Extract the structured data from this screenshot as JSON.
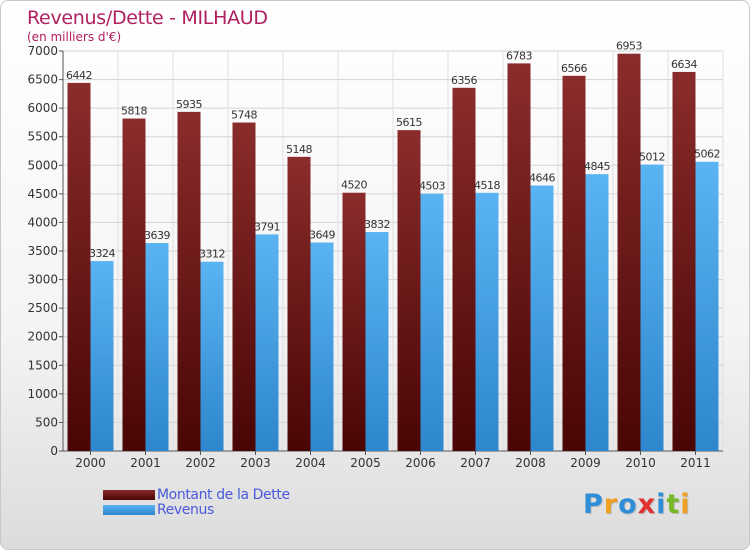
{
  "title": "Revenus/Dette - MILHAUD",
  "subtitle": "(en milliers d'€)",
  "colors": {
    "title": "#b02060",
    "debt_bar": "#6b1a1a",
    "revenue_bar": "#4aa3e8",
    "legend_text": "#4a5adb"
  },
  "legend": {
    "debt_label": "Montant de la Dette",
    "revenue_label": "Revenus"
  },
  "logo": {
    "text": "Proxiti",
    "letters": [
      {
        "ch": "P",
        "color": "#2e8fd8"
      },
      {
        "ch": "r",
        "color": "#f0a020"
      },
      {
        "ch": "o",
        "color": "#2e8fd8"
      },
      {
        "ch": "x",
        "color": "#e03030"
      },
      {
        "ch": "i",
        "color": "#2e8fd8"
      },
      {
        "ch": "t",
        "color": "#78b828"
      },
      {
        "ch": "i",
        "color": "#f0a020"
      }
    ]
  },
  "chart_data": {
    "type": "bar",
    "categories": [
      "2000",
      "2001",
      "2002",
      "2003",
      "2004",
      "2005",
      "2006",
      "2007",
      "2008",
      "2009",
      "2010",
      "2011"
    ],
    "series": [
      {
        "name": "Montant de la Dette",
        "values": [
          6442,
          5818,
          5935,
          5748,
          5148,
          4520,
          5615,
          6356,
          6783,
          6566,
          6953,
          6634
        ]
      },
      {
        "name": "Revenus",
        "values": [
          3324,
          3639,
          3312,
          3791,
          3649,
          3832,
          4503,
          4518,
          4646,
          4845,
          5012,
          5062
        ]
      }
    ],
    "ylim": [
      0,
      7000
    ],
    "yticks": [
      0,
      500,
      1000,
      1500,
      2000,
      2500,
      3000,
      3500,
      4000,
      4500,
      5000,
      5500,
      6000,
      6500,
      7000
    ],
    "grid": true,
    "legend_position": "bottom-left"
  }
}
